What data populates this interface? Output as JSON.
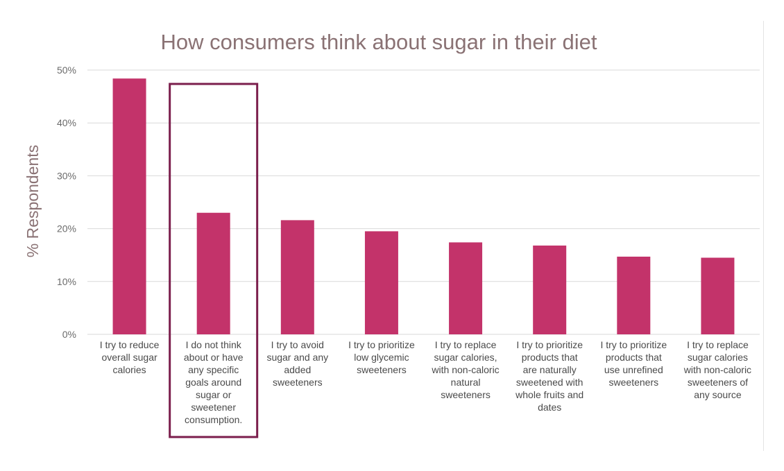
{
  "chart_data": {
    "type": "bar",
    "title": "How consumers think about sugar in their diet",
    "ylabel": "% Respondents",
    "xlabel": "",
    "ylim": [
      0,
      0.5
    ],
    "yticks": [
      0,
      0.1,
      0.2,
      0.3,
      0.4,
      0.5
    ],
    "ytick_labels": [
      "0%",
      "10%",
      "20%",
      "30%",
      "40%",
      "50%"
    ],
    "grid": true,
    "categories": [
      [
        "I try to reduce",
        "overall sugar",
        "calories"
      ],
      [
        "I do not think",
        "about or have",
        "any specific",
        "goals around",
        "sugar or",
        "sweetener",
        "consumption."
      ],
      [
        "I try to avoid",
        "sugar and any",
        "added",
        "sweeteners"
      ],
      [
        "I try to prioritize",
        "low glycemic",
        "sweeteners"
      ],
      [
        "I try to replace",
        "sugar calories,",
        "with non-caloric",
        "natural",
        "sweeteners"
      ],
      [
        "I try to prioritize",
        "products that",
        "are naturally",
        "sweetened with",
        "whole fruits and",
        "dates"
      ],
      [
        "I try to prioritize",
        "products that",
        "use unrefined",
        "sweeteners"
      ],
      [
        "I try to replace",
        "sugar calories",
        "with non-caloric",
        "sweeteners of",
        "any source"
      ]
    ],
    "values": [
      0.484,
      0.23,
      0.216,
      0.195,
      0.174,
      0.168,
      0.147,
      0.145
    ],
    "highlighted_category_index": 1,
    "colors": {
      "bar": "#c3336a",
      "highlight_box": "#7b1e4c",
      "title": "#8a7274",
      "axis_label": "#8a7274",
      "tick_label": "#6b6b6b",
      "category_label": "#4a4a4a",
      "gridline": "#d9d9d9"
    }
  }
}
